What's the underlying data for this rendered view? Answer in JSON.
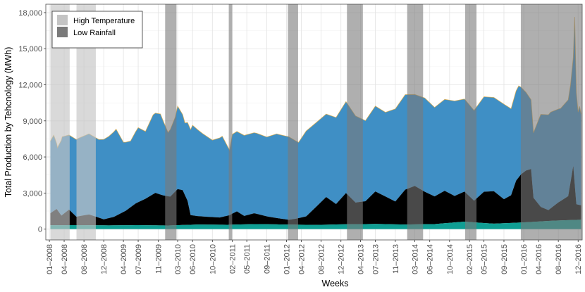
{
  "chart_data": {
    "type": "area",
    "title": "",
    "xlabel": "Weeks",
    "ylabel": "Total Production by Tehcnology (MWh)",
    "x_range": [
      "2007-12-10",
      "2016-12-26"
    ],
    "ylim": [
      -900,
      18700
    ],
    "grid": true,
    "y_ticks": [
      {
        "value": 0,
        "label": "0"
      },
      {
        "value": 3000,
        "label": "3,000"
      },
      {
        "value": 6000,
        "label": "6,000"
      },
      {
        "value": 9000,
        "label": "9,000"
      },
      {
        "value": 12000,
        "label": "12,000"
      },
      {
        "value": 15000,
        "label": "15,000"
      },
      {
        "value": 18000,
        "label": "18,000"
      }
    ],
    "x_ticks": [
      {
        "date": "2008-01-01",
        "label": "01–2008"
      },
      {
        "date": "2008-04-01",
        "label": "04–2008"
      },
      {
        "date": "2008-08-01",
        "label": "08–2008"
      },
      {
        "date": "2008-12-01",
        "label": "12–2008"
      },
      {
        "date": "2009-04-01",
        "label": "04–2009"
      },
      {
        "date": "2009-07-01",
        "label": "07–2009"
      },
      {
        "date": "2009-11-01",
        "label": "11–2009"
      },
      {
        "date": "2010-03-01",
        "label": "03–2010"
      },
      {
        "date": "2010-06-01",
        "label": "06–2010"
      },
      {
        "date": "2010-10-01",
        "label": "10–2010"
      },
      {
        "date": "2011-02-01",
        "label": "02–2011"
      },
      {
        "date": "2011-05-01",
        "label": "05–2011"
      },
      {
        "date": "2011-09-01",
        "label": "09–2011"
      },
      {
        "date": "2012-01-01",
        "label": "01–2012"
      },
      {
        "date": "2012-04-01",
        "label": "04–2012"
      },
      {
        "date": "2012-08-01",
        "label": "08–2012"
      },
      {
        "date": "2012-12-01",
        "label": "12–2012"
      },
      {
        "date": "2013-04-01",
        "label": "04–2013"
      },
      {
        "date": "2013-07-01",
        "label": "07–2013"
      },
      {
        "date": "2013-11-01",
        "label": "11–2013"
      },
      {
        "date": "2014-03-01",
        "label": "03–2014"
      },
      {
        "date": "2014-06-01",
        "label": "06–2014"
      },
      {
        "date": "2014-10-01",
        "label": "10–2014"
      },
      {
        "date": "2015-02-01",
        "label": "02–2015"
      },
      {
        "date": "2015-05-01",
        "label": "05–2015"
      },
      {
        "date": "2015-09-01",
        "label": "09–2015"
      },
      {
        "date": "2016-01-01",
        "label": "01–2016"
      },
      {
        "date": "2016-04-01",
        "label": "04–2016"
      },
      {
        "date": "2016-08-01",
        "label": "08–2016"
      },
      {
        "date": "2016-12-01",
        "label": "12–2016"
      }
    ],
    "legend": {
      "position": "top-left",
      "entries": [
        {
          "label": "High Temperature",
          "color": "#c4c4c4"
        },
        {
          "label": "Low Rainfall",
          "color": "#7a7a7a"
        }
      ]
    },
    "shaded_periods": [
      {
        "type": "High Temperature",
        "start": "2008-01-07",
        "end": "2008-05-05"
      },
      {
        "type": "High Temperature",
        "start": "2008-06-16",
        "end": "2008-10-13"
      },
      {
        "type": "Low Rainfall",
        "start": "2009-12-14",
        "end": "2010-02-22"
      },
      {
        "type": "Low Rainfall",
        "start": "2011-01-10",
        "end": "2011-01-31"
      },
      {
        "type": "Low Rainfall",
        "start": "2012-01-09",
        "end": "2012-03-12"
      },
      {
        "type": "Low Rainfall",
        "start": "2013-01-07",
        "end": "2013-04-15"
      },
      {
        "type": "Low Rainfall",
        "start": "2014-01-13",
        "end": "2014-04-21"
      },
      {
        "type": "Low Rainfall",
        "start": "2015-01-05",
        "end": "2015-03-16"
      },
      {
        "type": "Low Rainfall",
        "start": "2015-12-14",
        "end": "2016-12-26"
      }
    ],
    "series": [
      {
        "color": "#0f9e93",
        "values_description_omitted": true,
        "points": [
          [
            "2008-01-07",
            320
          ],
          [
            "2008-07-01",
            330
          ],
          [
            "2009-01-01",
            310
          ],
          [
            "2009-07-01",
            330
          ],
          [
            "2010-01-01",
            300
          ],
          [
            "2010-07-01",
            380
          ],
          [
            "2011-01-01",
            360
          ],
          [
            "2011-07-01",
            420
          ],
          [
            "2012-01-01",
            380
          ],
          [
            "2012-07-01",
            350
          ],
          [
            "2013-01-01",
            400
          ],
          [
            "2013-07-01",
            430
          ],
          [
            "2014-01-01",
            380
          ],
          [
            "2014-07-01",
            420
          ],
          [
            "2015-01-01",
            620
          ],
          [
            "2015-07-01",
            450
          ],
          [
            "2016-01-01",
            560
          ],
          [
            "2016-07-01",
            700
          ],
          [
            "2016-12-19",
            780
          ]
        ]
      },
      {
        "color": "#000000",
        "points": [
          [
            "2008-01-07",
            1000
          ],
          [
            "2008-02-15",
            1350
          ],
          [
            "2008-03-15",
            800
          ],
          [
            "2008-05-01",
            1300
          ],
          [
            "2008-06-15",
            700
          ],
          [
            "2008-09-01",
            900
          ],
          [
            "2008-12-01",
            500
          ],
          [
            "2009-02-01",
            700
          ],
          [
            "2009-04-15",
            1200
          ],
          [
            "2009-06-15",
            1800
          ],
          [
            "2009-08-15",
            2200
          ],
          [
            "2009-10-15",
            2700
          ],
          [
            "2009-12-01",
            2500
          ],
          [
            "2010-01-15",
            2400
          ],
          [
            "2010-03-01",
            3000
          ],
          [
            "2010-04-01",
            2900
          ],
          [
            "2010-05-01",
            2000
          ],
          [
            "2010-05-20",
            800
          ],
          [
            "2010-07-01",
            700
          ],
          [
            "2010-09-01",
            650
          ],
          [
            "2010-11-15",
            600
          ],
          [
            "2011-01-15",
            800
          ],
          [
            "2011-03-01",
            1100
          ],
          [
            "2011-04-15",
            700
          ],
          [
            "2011-06-15",
            900
          ],
          [
            "2011-09-01",
            650
          ],
          [
            "2011-11-15",
            500
          ],
          [
            "2012-01-15",
            400
          ],
          [
            "2012-03-01",
            500
          ],
          [
            "2012-05-01",
            700
          ],
          [
            "2012-07-01",
            1500
          ],
          [
            "2012-09-01",
            2300
          ],
          [
            "2012-11-01",
            1700
          ],
          [
            "2013-01-01",
            2600
          ],
          [
            "2013-03-01",
            1800
          ],
          [
            "2013-05-01",
            1900
          ],
          [
            "2013-07-01",
            2700
          ],
          [
            "2013-09-01",
            2300
          ],
          [
            "2013-11-01",
            1900
          ],
          [
            "2014-01-01",
            2900
          ],
          [
            "2014-03-01",
            3200
          ],
          [
            "2014-05-01",
            2700
          ],
          [
            "2014-07-01",
            2300
          ],
          [
            "2014-09-01",
            2700
          ],
          [
            "2014-11-01",
            2200
          ],
          [
            "2015-01-01",
            2500
          ],
          [
            "2015-03-01",
            1800
          ],
          [
            "2015-05-01",
            2600
          ],
          [
            "2015-07-01",
            2700
          ],
          [
            "2015-09-01",
            2000
          ],
          [
            "2015-10-15",
            2300
          ],
          [
            "2015-11-15",
            3500
          ],
          [
            "2015-12-15",
            4000
          ],
          [
            "2016-01-15",
            4300
          ],
          [
            "2016-02-15",
            4400
          ],
          [
            "2016-03-01",
            2000
          ],
          [
            "2016-04-15",
            1200
          ],
          [
            "2016-06-01",
            900
          ],
          [
            "2016-08-01",
            1500
          ],
          [
            "2016-10-01",
            2000
          ],
          [
            "2016-11-01",
            4500
          ],
          [
            "2016-11-20",
            1300
          ],
          [
            "2016-12-19",
            1200
          ]
        ]
      },
      {
        "color": "#3f8fc5",
        "points": [
          [
            "2008-01-07",
            6000
          ],
          [
            "2008-01-28",
            6300
          ],
          [
            "2008-02-20",
            5200
          ],
          [
            "2008-03-20",
            6500
          ],
          [
            "2008-05-01",
            6200
          ],
          [
            "2008-07-01",
            6500
          ],
          [
            "2008-09-01",
            6700
          ],
          [
            "2008-11-01",
            6500
          ],
          [
            "2009-01-01",
            6800
          ],
          [
            "2009-02-15",
            7200
          ],
          [
            "2009-04-01",
            5800
          ],
          [
            "2009-05-15",
            5500
          ],
          [
            "2009-07-01",
            6200
          ],
          [
            "2009-08-15",
            5600
          ],
          [
            "2009-10-01",
            6600
          ],
          [
            "2009-11-15",
            6700
          ],
          [
            "2010-01-01",
            5300
          ],
          [
            "2010-02-15",
            6200
          ],
          [
            "2010-03-01",
            6900
          ],
          [
            "2010-04-15",
            6000
          ],
          [
            "2010-06-01",
            7500
          ],
          [
            "2010-08-01",
            6900
          ],
          [
            "2010-10-01",
            6400
          ],
          [
            "2010-12-01",
            6700
          ],
          [
            "2011-01-15",
            5400
          ],
          [
            "2011-02-01",
            6600
          ],
          [
            "2011-04-15",
            6700
          ],
          [
            "2011-07-01",
            6700
          ],
          [
            "2011-09-01",
            6600
          ],
          [
            "2011-11-01",
            7000
          ],
          [
            "2012-01-15",
            6900
          ],
          [
            "2012-03-15",
            6300
          ],
          [
            "2012-05-01",
            7100
          ],
          [
            "2012-07-01",
            7000
          ],
          [
            "2012-09-01",
            6900
          ],
          [
            "2012-11-01",
            7200
          ],
          [
            "2013-01-01",
            7600
          ],
          [
            "2013-03-01",
            7200
          ],
          [
            "2013-05-01",
            6700
          ],
          [
            "2013-07-01",
            7100
          ],
          [
            "2013-09-01",
            7000
          ],
          [
            "2013-11-01",
            7700
          ],
          [
            "2014-01-01",
            7900
          ],
          [
            "2014-03-01",
            7600
          ],
          [
            "2014-05-01",
            7800
          ],
          [
            "2014-07-01",
            7400
          ],
          [
            "2014-09-01",
            7600
          ],
          [
            "2014-11-01",
            7900
          ],
          [
            "2015-01-01",
            7700
          ],
          [
            "2015-03-01",
            7500
          ],
          [
            "2015-05-01",
            7900
          ],
          [
            "2015-07-01",
            7800
          ],
          [
            "2015-09-01",
            7900
          ],
          [
            "2015-10-15",
            7200
          ],
          [
            "2015-12-01",
            7600
          ],
          [
            "2016-01-15",
            6500
          ],
          [
            "2016-03-01",
            5400
          ],
          [
            "2016-04-15",
            7700
          ],
          [
            "2016-06-15",
            8000
          ],
          [
            "2016-08-15",
            7700
          ],
          [
            "2016-10-15",
            8100
          ],
          [
            "2016-11-01",
            9000
          ],
          [
            "2016-11-10",
            13900
          ],
          [
            "2016-11-20",
            9300
          ],
          [
            "2016-12-01",
            7700
          ],
          [
            "2016-12-10",
            8200
          ],
          [
            "2016-12-19",
            7600
          ]
        ]
      }
    ]
  }
}
